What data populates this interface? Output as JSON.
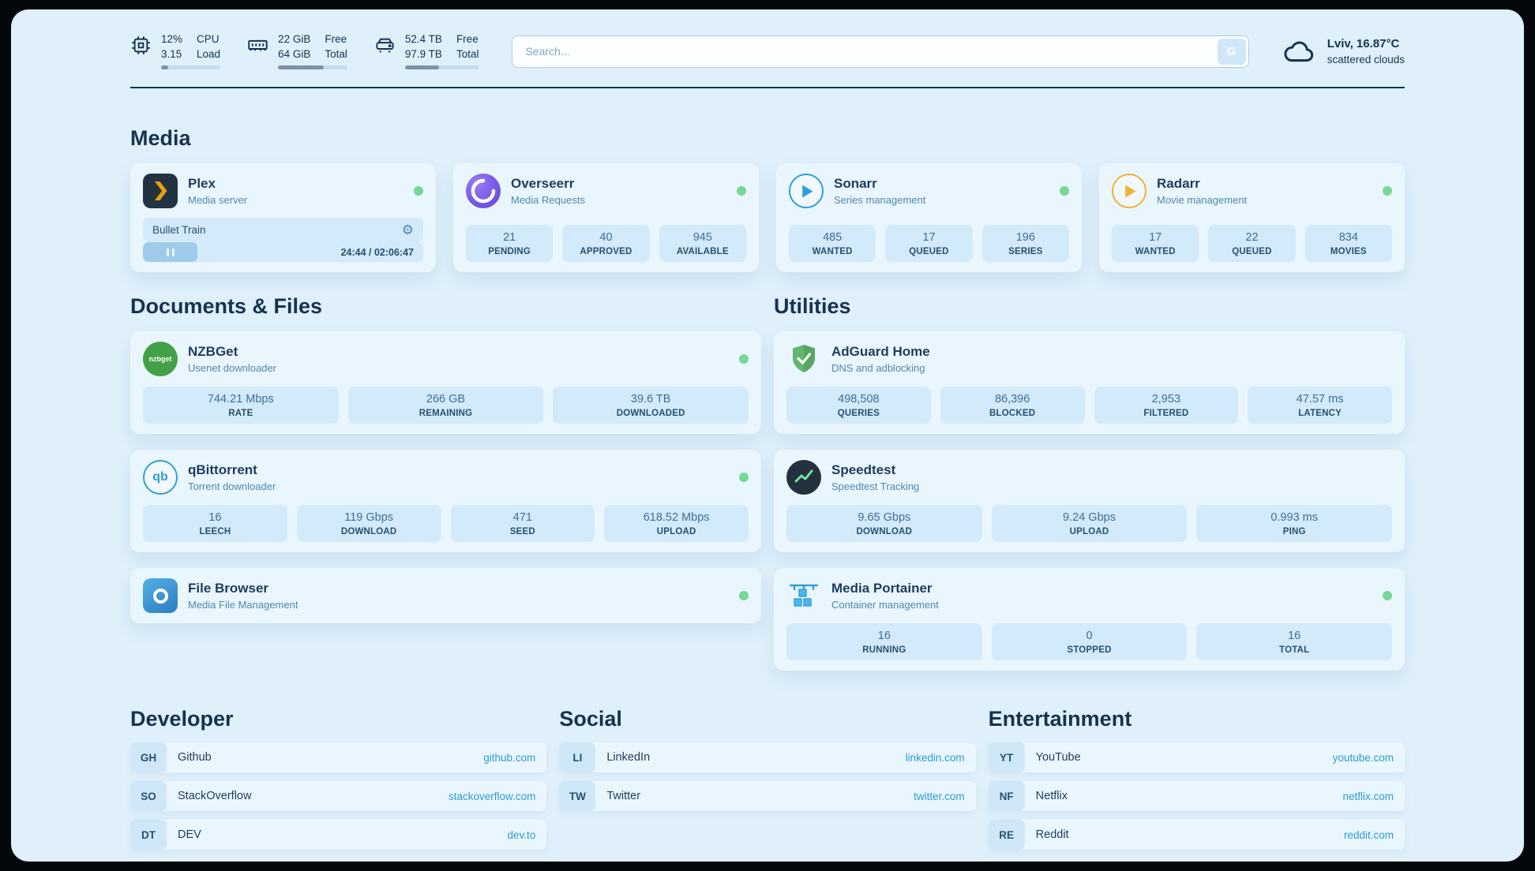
{
  "topbar": {
    "cpu": {
      "value_top": "12%",
      "value_bottom": "3.15",
      "label_top": "CPU",
      "label_bottom": "Load",
      "progress": 12
    },
    "ram": {
      "value_top": "22 GiB",
      "value_bottom": "64 GiB",
      "label_top": "Free",
      "label_bottom": "Total",
      "progress": 66
    },
    "disk": {
      "value_top": "52.4 TB",
      "value_bottom": "97.9 TB",
      "label_top": "Free",
      "label_bottom": "Total",
      "progress": 46
    },
    "search": {
      "placeholder": "Search...",
      "button_label": "G"
    },
    "weather": {
      "location": "Lviv, 16.87°C",
      "condition": "scattered clouds"
    }
  },
  "sections": {
    "media": "Media",
    "documents": "Documents & Files",
    "utilities": "Utilities",
    "developer": "Developer",
    "social": "Social",
    "entertainment": "Entertainment"
  },
  "apps": {
    "plex": {
      "name": "Plex",
      "subtitle": "Media server",
      "now_playing": "Bullet Train",
      "time": "24:44 / 02:06:47",
      "progress": 19.5
    },
    "overseerr": {
      "name": "Overseerr",
      "subtitle": "Media Requests",
      "stats": [
        {
          "value": "21",
          "label": "PENDING"
        },
        {
          "value": "40",
          "label": "APPROVED"
        },
        {
          "value": "945",
          "label": "AVAILABLE"
        }
      ]
    },
    "sonarr": {
      "name": "Sonarr",
      "subtitle": "Series management",
      "stats": [
        {
          "value": "485",
          "label": "WANTED"
        },
        {
          "value": "17",
          "label": "QUEUED"
        },
        {
          "value": "196",
          "label": "SERIES"
        }
      ]
    },
    "radarr": {
      "name": "Radarr",
      "subtitle": "Movie management",
      "stats": [
        {
          "value": "17",
          "label": "WANTED"
        },
        {
          "value": "22",
          "label": "QUEUED"
        },
        {
          "value": "834",
          "label": "MOVIES"
        }
      ]
    },
    "nzbget": {
      "name": "NZBGet",
      "subtitle": "Usenet downloader",
      "stats": [
        {
          "value": "744.21 Mbps",
          "label": "RATE"
        },
        {
          "value": "266 GB",
          "label": "REMAINING"
        },
        {
          "value": "39.6 TB",
          "label": "DOWNLOADED"
        }
      ]
    },
    "qbittorrent": {
      "name": "qBittorrent",
      "subtitle": "Torrent downloader",
      "stats": [
        {
          "value": "16",
          "label": "LEECH"
        },
        {
          "value": "119 Gbps",
          "label": "DOWNLOAD"
        },
        {
          "value": "471",
          "label": "SEED"
        },
        {
          "value": "618.52 Mbps",
          "label": "UPLOAD"
        }
      ]
    },
    "filebrowser": {
      "name": "File Browser",
      "subtitle": "Media File Management"
    },
    "adguard": {
      "name": "AdGuard Home",
      "subtitle": "DNS and adblocking",
      "stats": [
        {
          "value": "498,508",
          "label": "QUERIES"
        },
        {
          "value": "86,396",
          "label": "BLOCKED"
        },
        {
          "value": "2,953",
          "label": "FILTERED"
        },
        {
          "value": "47.57 ms",
          "label": "LATENCY"
        }
      ]
    },
    "speedtest": {
      "name": "Speedtest",
      "subtitle": "Speedtest Tracking",
      "stats": [
        {
          "value": "9.65 Gbps",
          "label": "DOWNLOAD"
        },
        {
          "value": "9.24 Gbps",
          "label": "UPLOAD"
        },
        {
          "value": "0.993 ms",
          "label": "PING"
        }
      ]
    },
    "portainer": {
      "name": "Media Portainer",
      "subtitle": "Container management",
      "stats": [
        {
          "value": "16",
          "label": "RUNNING"
        },
        {
          "value": "0",
          "label": "STOPPED"
        },
        {
          "value": "16",
          "label": "TOTAL"
        }
      ]
    }
  },
  "bookmarks": {
    "developer": [
      {
        "abbr": "GH",
        "name": "Github",
        "url": "github.com"
      },
      {
        "abbr": "SO",
        "name": "StackOverflow",
        "url": "stackoverflow.com"
      },
      {
        "abbr": "DT",
        "name": "DEV",
        "url": "dev.to"
      }
    ],
    "social": [
      {
        "abbr": "LI",
        "name": "LinkedIn",
        "url": "linkedin.com"
      },
      {
        "abbr": "TW",
        "name": "Twitter",
        "url": "twitter.com"
      }
    ],
    "entertainment": [
      {
        "abbr": "YT",
        "name": "YouTube",
        "url": "youtube.com"
      },
      {
        "abbr": "NF",
        "name": "Netflix",
        "url": "netflix.com"
      },
      {
        "abbr": "RE",
        "name": "Reddit",
        "url": "reddit.com"
      }
    ]
  },
  "icons": {
    "nzbget_text": "nzbget",
    "qbittorrent_text": "qb"
  },
  "colors": {
    "background": "#dff0fb",
    "card": "#eaf6fd",
    "stat_box": "#d2eaf9",
    "text_primary": "#16324f",
    "text_secondary": "#4d87b0",
    "accent": "#2b9bd7",
    "status_online": "#77d794",
    "plex_orange": "#e5a00d",
    "overseerr_purple": "#5b3fd4",
    "adguard_green": "#63b56f",
    "nzbget_green": "#43a047"
  }
}
